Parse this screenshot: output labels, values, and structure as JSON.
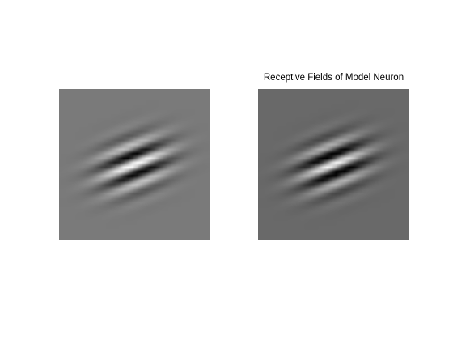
{
  "figure": {
    "title": "Receptive Fields of Model Neuron",
    "background_color": "#ffffff"
  },
  "panels": [
    {
      "name": "left",
      "background_gray": "#7a7a7a",
      "stimulus": "oriented gabor-like receptive field"
    },
    {
      "name": "right",
      "background_gray": "#696969",
      "stimulus": "oriented gabor-like receptive field"
    }
  ]
}
